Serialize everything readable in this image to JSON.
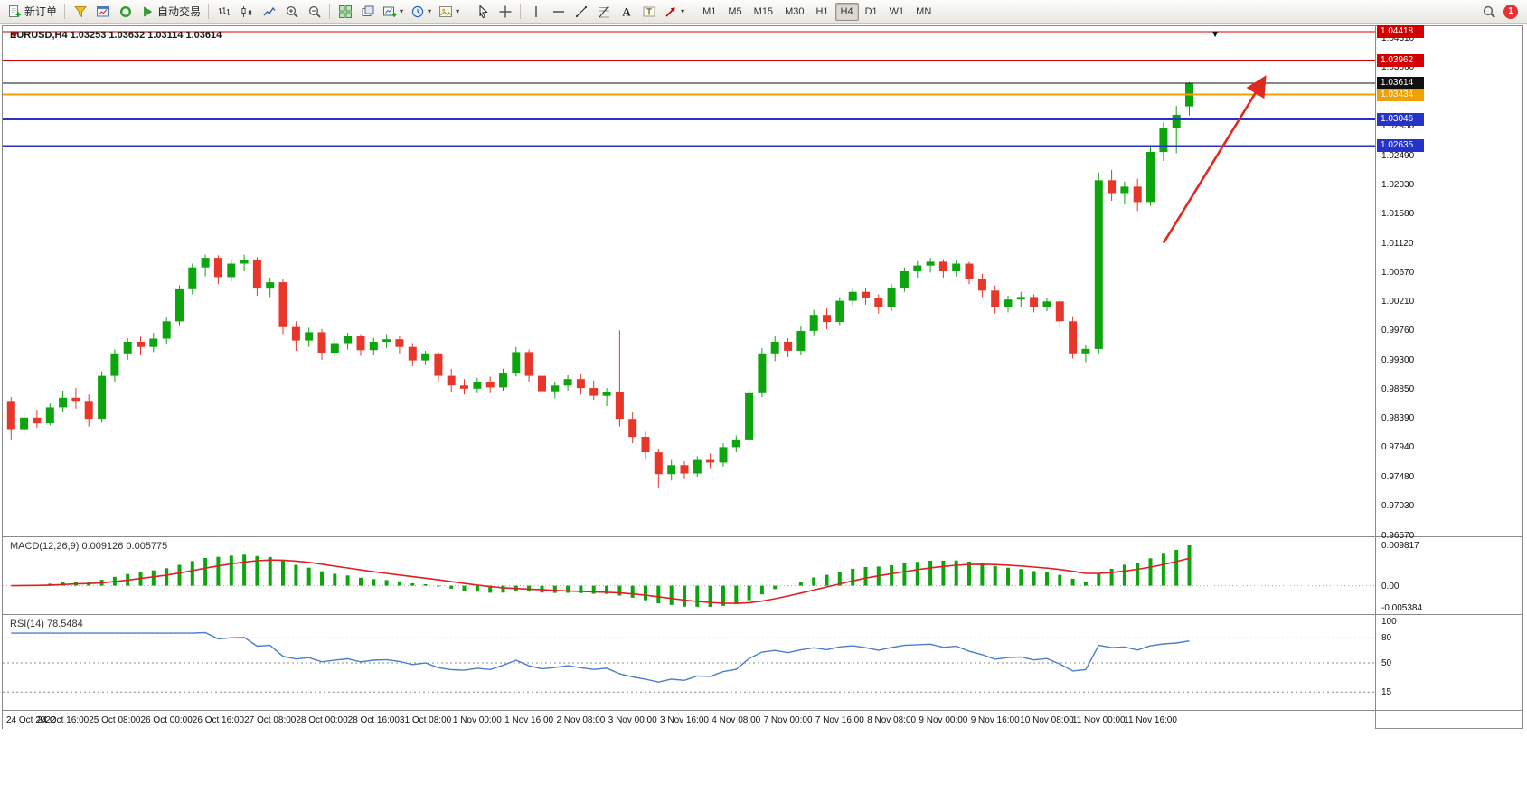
{
  "toolbar": {
    "new_order_label": "新订单",
    "autotrading_label": "自动交易",
    "buttons": [
      {
        "id": "new-order",
        "icon": "doc-plus",
        "label": "新订单"
      },
      {
        "sep": true
      },
      {
        "id": "profiles",
        "icon": "funnel"
      },
      {
        "id": "charts",
        "icon": "chart-frame"
      },
      {
        "id": "data-window",
        "icon": "ring"
      },
      {
        "id": "autotrading",
        "icon": "play",
        "label": "自动交易"
      },
      {
        "sep": true
      },
      {
        "id": "bar-chart",
        "icon": "bars"
      },
      {
        "id": "candlestick-chart",
        "icon": "candles"
      },
      {
        "id": "line-chart",
        "icon": "polyline"
      },
      {
        "id": "zoom-in",
        "icon": "zoom-in"
      },
      {
        "id": "zoom-out",
        "icon": "zoom-out"
      },
      {
        "sep": true
      },
      {
        "id": "tile-windows",
        "icon": "grid"
      },
      {
        "id": "cascade-windows",
        "icon": "windows"
      },
      {
        "id": "new-chart",
        "icon": "chart-plus",
        "caret": true
      },
      {
        "id": "periods",
        "icon": "clock",
        "caret": true
      },
      {
        "id": "templates",
        "icon": "palette",
        "caret": true
      },
      {
        "sep": true
      },
      {
        "id": "cursor",
        "icon": "cursor"
      },
      {
        "id": "crosshair",
        "icon": "crosshair"
      },
      {
        "sep": true
      },
      {
        "id": "vertical-line",
        "icon": "vline"
      },
      {
        "id": "horizontal-line",
        "icon": "hline"
      },
      {
        "id": "trendline",
        "icon": "tline"
      },
      {
        "id": "fibonacci",
        "icon": "fibo"
      },
      {
        "id": "text",
        "icon": "textA"
      },
      {
        "id": "text-label",
        "icon": "labelT"
      },
      {
        "id": "arrows",
        "icon": "arrowNE",
        "caret": true
      }
    ],
    "timeframes": [
      "M1",
      "M5",
      "M15",
      "M30",
      "H1",
      "H4",
      "D1",
      "W1",
      "MN"
    ],
    "active_timeframe": "H4",
    "notification_count": "1"
  },
  "chart": {
    "title": "EURUSD,H4 1.03253 1.03632 1.03114 1.03614",
    "scale": {
      "top_price": 1.045,
      "bottom_price": 0.9655
    },
    "right_shift_bars": 14,
    "colors": {
      "up": "#0da50d",
      "down": "#e8362a"
    },
    "hlines": [
      {
        "price": 1.04418,
        "color": "#d40000",
        "width": 1,
        "badge": true
      },
      {
        "price": 1.03962,
        "color": "#d40000",
        "width": 2,
        "badge": true
      },
      {
        "price": 1.03614,
        "color": "#111111",
        "width": 1,
        "badge": true
      },
      {
        "price": 1.03434,
        "color": "#f0a000",
        "width": 2,
        "badge": true
      },
      {
        "price": 1.03046,
        "color": "#2633c8",
        "width": 2,
        "badge": true
      },
      {
        "price": 1.02635,
        "color": "#2633c8",
        "width": 2,
        "badge": true
      }
    ],
    "axis_ticks": [
      1.0431,
      1.0386,
      1.0295,
      1.0249,
      1.0203,
      1.0158,
      1.0112,
      1.0067,
      1.0021,
      0.9976,
      0.993,
      0.9885,
      0.9839,
      0.9794,
      0.9748,
      0.9703,
      0.9657
    ],
    "arrow": {
      "from_bar": 89,
      "from_price": 1.0112,
      "to_bar": 96.8,
      "to_price": 1.0369,
      "color": "#e02a20"
    },
    "marker": {
      "at_bar": 93,
      "price": 1.0446,
      "glyph": "▼"
    }
  },
  "chart_data": {
    "type": "candlestick",
    "symbol": "EURUSD",
    "timeframe": "H4",
    "last_bar": {
      "open": 1.03253,
      "high": 1.03632,
      "low": 1.03114,
      "close": 1.03614
    },
    "ohlc": [
      [
        0.9866,
        0.9872,
        0.9806,
        0.9822
      ],
      [
        0.9822,
        0.9846,
        0.9815,
        0.984
      ],
      [
        0.984,
        0.9852,
        0.9824,
        0.9831
      ],
      [
        0.9831,
        0.9862,
        0.9828,
        0.9856
      ],
      [
        0.9856,
        0.9882,
        0.9848,
        0.9871
      ],
      [
        0.9871,
        0.9886,
        0.9854,
        0.9866
      ],
      [
        0.9866,
        0.9876,
        0.9826,
        0.9838
      ],
      [
        0.9838,
        0.9912,
        0.9832,
        0.9905
      ],
      [
        0.9905,
        0.9946,
        0.9896,
        0.994
      ],
      [
        0.994,
        0.9964,
        0.993,
        0.9958
      ],
      [
        0.9958,
        0.9966,
        0.9938,
        0.995
      ],
      [
        0.995,
        0.9972,
        0.9942,
        0.9963
      ],
      [
        0.9963,
        0.9996,
        0.9955,
        0.999
      ],
      [
        0.999,
        1.0046,
        0.9984,
        1.004
      ],
      [
        1.004,
        1.008,
        1.0032,
        1.0074
      ],
      [
        1.0074,
        1.0094,
        1.006,
        1.0089
      ],
      [
        1.0089,
        1.0093,
        1.0048,
        1.0059
      ],
      [
        1.0059,
        1.0086,
        1.0052,
        1.008
      ],
      [
        1.008,
        1.0094,
        1.0068,
        1.0086
      ],
      [
        1.0086,
        1.009,
        1.003,
        1.0041
      ],
      [
        1.0041,
        1.0058,
        1.0028,
        1.0051
      ],
      [
        1.0051,
        1.0056,
        0.997,
        0.9981
      ],
      [
        0.9981,
        0.999,
        0.9944,
        0.996
      ],
      [
        0.996,
        0.998,
        0.995,
        0.9973
      ],
      [
        0.9973,
        0.9978,
        0.993,
        0.9941
      ],
      [
        0.9941,
        0.9962,
        0.9934,
        0.9956
      ],
      [
        0.9956,
        0.9972,
        0.9946,
        0.9967
      ],
      [
        0.9967,
        0.997,
        0.9936,
        0.9945
      ],
      [
        0.9945,
        0.9964,
        0.9938,
        0.9958
      ],
      [
        0.9958,
        0.997,
        0.9948,
        0.9962
      ],
      [
        0.9962,
        0.9968,
        0.994,
        0.995
      ],
      [
        0.995,
        0.9956,
        0.992,
        0.9929
      ],
      [
        0.9929,
        0.9944,
        0.9922,
        0.994
      ],
      [
        0.994,
        0.9942,
        0.9896,
        0.9905
      ],
      [
        0.9905,
        0.9916,
        0.988,
        0.989
      ],
      [
        0.989,
        0.99,
        0.9876,
        0.9885
      ],
      [
        0.9885,
        0.9902,
        0.9878,
        0.9896
      ],
      [
        0.9896,
        0.9904,
        0.9878,
        0.9887
      ],
      [
        0.9887,
        0.9916,
        0.9882,
        0.991
      ],
      [
        0.991,
        0.995,
        0.9904,
        0.9942
      ],
      [
        0.9942,
        0.9946,
        0.9896,
        0.9905
      ],
      [
        0.9905,
        0.9912,
        0.9872,
        0.9881
      ],
      [
        0.9881,
        0.9896,
        0.987,
        0.989
      ],
      [
        0.989,
        0.9906,
        0.9882,
        0.99
      ],
      [
        0.99,
        0.9908,
        0.9876,
        0.9886
      ],
      [
        0.9886,
        0.9898,
        0.9868,
        0.9874
      ],
      [
        0.9874,
        0.9886,
        0.9858,
        0.988
      ],
      [
        0.988,
        0.9976,
        0.9826,
        0.9838
      ],
      [
        0.9838,
        0.9848,
        0.98,
        0.981
      ],
      [
        0.981,
        0.9818,
        0.9776,
        0.9786
      ],
      [
        0.9786,
        0.9792,
        0.973,
        0.9752
      ],
      [
        0.9752,
        0.9774,
        0.9742,
        0.9766
      ],
      [
        0.9766,
        0.9772,
        0.9744,
        0.9753
      ],
      [
        0.9753,
        0.978,
        0.9748,
        0.9774
      ],
      [
        0.9774,
        0.9784,
        0.976,
        0.977
      ],
      [
        0.977,
        0.98,
        0.9764,
        0.9794
      ],
      [
        0.9794,
        0.9812,
        0.9786,
        0.9806
      ],
      [
        0.9806,
        0.9886,
        0.98,
        0.9878
      ],
      [
        0.9878,
        0.9948,
        0.9872,
        0.994
      ],
      [
        0.994,
        0.9968,
        0.9928,
        0.9958
      ],
      [
        0.9958,
        0.9964,
        0.9934,
        0.9944
      ],
      [
        0.9944,
        0.9982,
        0.9938,
        0.9975
      ],
      [
        0.9975,
        1.0008,
        0.9968,
        1.0
      ],
      [
        1.0,
        1.001,
        0.9978,
        0.9989
      ],
      [
        0.9989,
        1.0028,
        0.9984,
        1.0022
      ],
      [
        1.0022,
        1.0042,
        1.0014,
        1.0036
      ],
      [
        1.0036,
        1.0042,
        1.0016,
        1.0026
      ],
      [
        1.0026,
        1.0032,
        1.0002,
        1.0012
      ],
      [
        1.0012,
        1.0048,
        1.0006,
        1.0042
      ],
      [
        1.0042,
        1.0074,
        1.0036,
        1.0068
      ],
      [
        1.0068,
        1.0084,
        1.0058,
        1.0077
      ],
      [
        1.0077,
        1.0089,
        1.0066,
        1.0083
      ],
      [
        1.0083,
        1.0087,
        1.0058,
        1.0068
      ],
      [
        1.0068,
        1.0085,
        1.006,
        1.008
      ],
      [
        1.008,
        1.0083,
        1.0048,
        1.0056
      ],
      [
        1.0056,
        1.0064,
        1.0028,
        1.0038
      ],
      [
        1.0038,
        1.0046,
        1.0002,
        1.0012
      ],
      [
        1.0012,
        1.003,
        1.0004,
        1.0024
      ],
      [
        1.0024,
        1.0036,
        1.0012,
        1.0028
      ],
      [
        1.0028,
        1.0032,
        1.0004,
        1.0012
      ],
      [
        1.0012,
        1.0026,
        1.0006,
        1.0021
      ],
      [
        1.0021,
        1.0024,
        0.998,
        0.999
      ],
      [
        0.999,
        0.9998,
        0.9932,
        0.994
      ],
      [
        0.994,
        0.9954,
        0.9926,
        0.9947
      ],
      [
        0.9947,
        1.0222,
        0.994,
        1.021
      ],
      [
        1.021,
        1.0226,
        1.0178,
        1.019
      ],
      [
        1.019,
        1.0208,
        1.0172,
        1.02
      ],
      [
        1.02,
        1.0212,
        1.0162,
        1.0176
      ],
      [
        1.0176,
        1.0262,
        1.017,
        1.0254
      ],
      [
        1.0254,
        1.03,
        1.024,
        1.0292
      ],
      [
        1.0292,
        1.0326,
        1.0252,
        1.0312
      ],
      [
        1.0325,
        1.0363,
        1.0311,
        1.0361
      ]
    ],
    "time_labels": [
      "24 Oct 2022",
      "24 Oct 16:00",
      "25 Oct 08:00",
      "26 Oct 00:00",
      "26 Oct 16:00",
      "27 Oct 08:00",
      "28 Oct 00:00",
      "28 Oct 16:00",
      "31 Oct 08:00",
      "1 Nov 00:00",
      "1 Nov 16:00",
      "2 Nov 08:00",
      "3 Nov 00:00",
      "3 Nov 16:00",
      "4 Nov 08:00",
      "7 Nov 00:00",
      "7 Nov 16:00",
      "8 Nov 08:00",
      "9 Nov 00:00",
      "9 Nov 16:00",
      "10 Nov 08:00",
      "11 Nov 00:00",
      "11 Nov 16:00"
    ],
    "label_every": 4
  },
  "macd": {
    "label": "MACD(12,26,9) 0.009126 0.005775",
    "params": [
      12,
      26,
      9
    ],
    "values": {
      "main": "0.009126",
      "signal": "0.005775"
    },
    "axis": {
      "top": "0.009817",
      "zero": "0.00",
      "bottom": "-0.005384"
    },
    "colors": {
      "histogram": "#0da50d",
      "signal": "#e02020"
    }
  },
  "rsi": {
    "label": "RSI(14) 78.5484",
    "period": 14,
    "value": "78.5484",
    "levels": [
      80,
      50,
      15
    ],
    "axis_labels": [
      "100",
      "80",
      "50",
      "15"
    ],
    "color": "#4a7ec8"
  }
}
